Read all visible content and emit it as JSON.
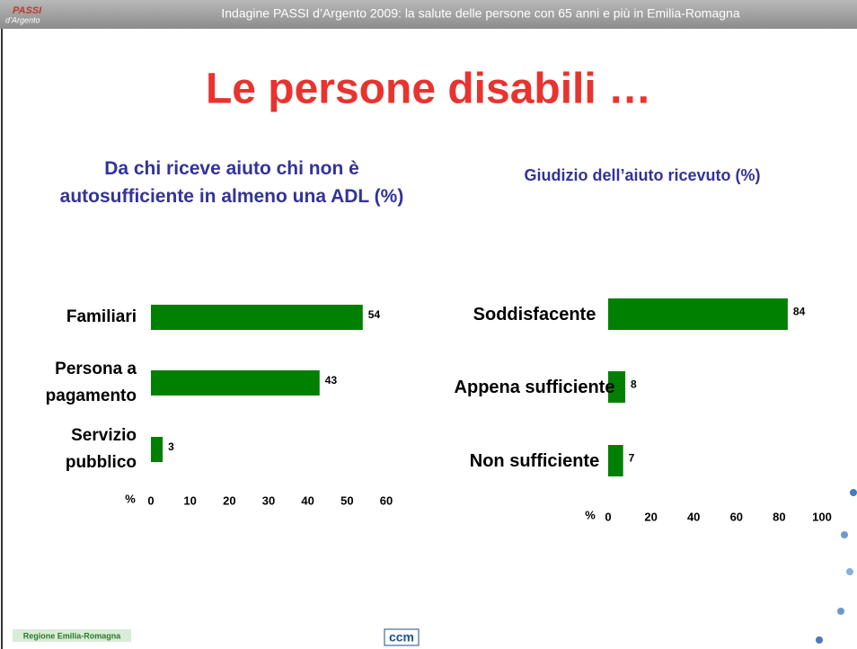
{
  "header": "Indagine PASSI d’Argento 2009: la salute delle persone con 65 anni e più in Emilia-Romagna",
  "logos": {
    "top": "PASSI",
    "top_sub": "d’Argento",
    "region": "Regione Emilia-Romagna",
    "ccm": "ccm"
  },
  "title": "Le persone disabili …",
  "chart_data": [
    {
      "type": "barh",
      "title": "Da chi riceve aiuto chi non è autosufficiente in almeno una ADL (%)",
      "categories": [
        "Familiari",
        "Persona a pagamento",
        "Servizio pubblico"
      ],
      "values": [
        54,
        43,
        3
      ],
      "color": "#008000",
      "xlabel": "%",
      "xlim": [
        0,
        60
      ],
      "xticks": [
        0,
        10,
        20,
        30,
        40,
        50,
        60
      ]
    },
    {
      "type": "barh",
      "title": "Giudizio dell’aiuto ricevuto (%)",
      "categories": [
        "Soddisfacente",
        "Appena sufficiente",
        "Non sufficiente"
      ],
      "values": [
        84,
        8,
        7
      ],
      "color": "#008000",
      "xlabel": "%",
      "xlim": [
        0,
        100
      ],
      "xticks": [
        0,
        20,
        40,
        60,
        80,
        100
      ]
    }
  ]
}
